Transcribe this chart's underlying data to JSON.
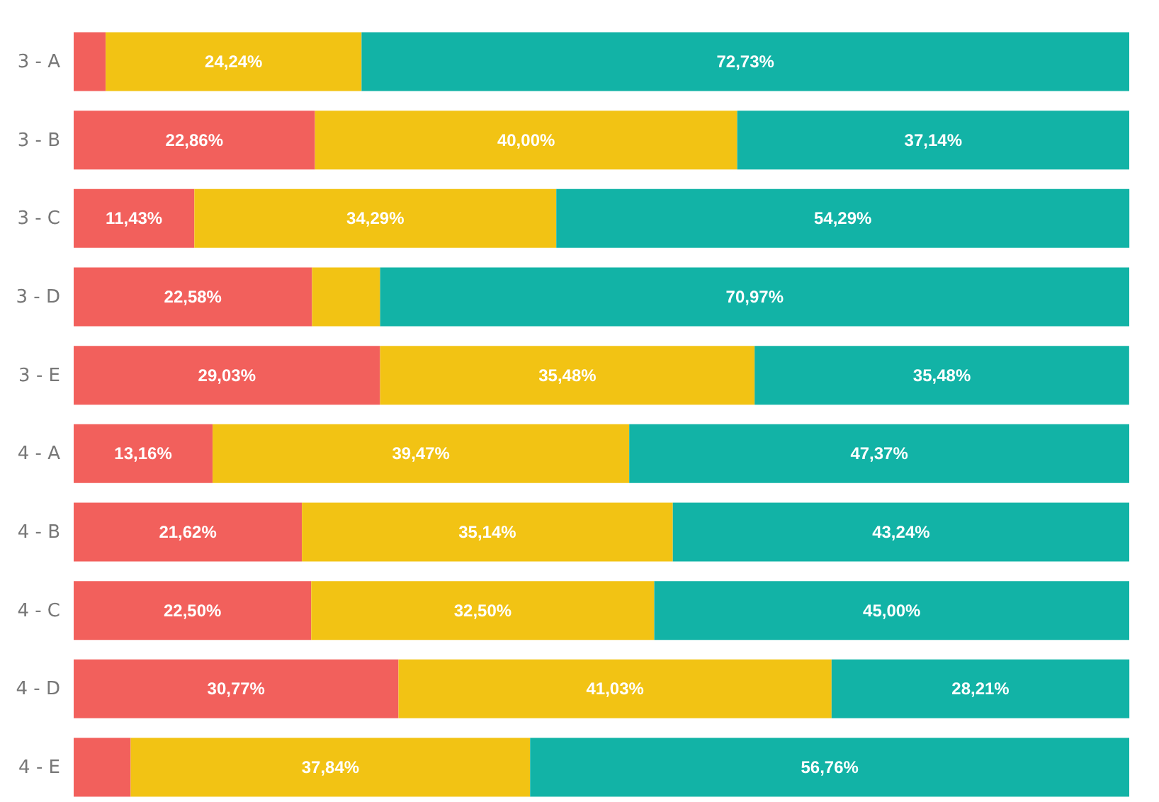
{
  "chart_data": {
    "type": "bar",
    "orientation": "horizontal",
    "stacked": true,
    "tick_labels": "y",
    "xlim": [
      0,
      100
    ],
    "categories": [
      "3 - A",
      "3 - B",
      "3 - C",
      "3 - D",
      "3 - E",
      "4 - A",
      "4 - B",
      "4 - C",
      "4 - D",
      "4 - E"
    ],
    "series": [
      {
        "color": "#f2605c",
        "values": [
          3.03,
          22.86,
          11.43,
          22.58,
          29.03,
          13.16,
          21.62,
          22.5,
          30.77,
          5.4
        ],
        "value_labels": [
          null,
          "22,86%",
          "11,43%",
          "22,58%",
          "29,03%",
          "13,16%",
          "21,62%",
          "22,50%",
          "30,77%",
          null
        ]
      },
      {
        "color": "#f2c314",
        "values": [
          24.24,
          40.0,
          34.29,
          6.45,
          35.48,
          39.47,
          35.14,
          32.5,
          41.03,
          37.84
        ],
        "value_labels": [
          "24,24%",
          "40,00%",
          "34,29%",
          null,
          "35,48%",
          "39,47%",
          "35,14%",
          "32,50%",
          "41,03%",
          "37,84%"
        ]
      },
      {
        "color": "#12b3a6",
        "values": [
          72.73,
          37.14,
          54.29,
          70.97,
          35.48,
          47.37,
          43.24,
          45.0,
          28.21,
          56.76
        ],
        "value_labels": [
          "72,73%",
          "37,14%",
          "54,29%",
          "70,97%",
          "35,48%",
          "47,37%",
          "43,24%",
          "45,00%",
          "28,21%",
          "56,76%"
        ]
      }
    ]
  }
}
